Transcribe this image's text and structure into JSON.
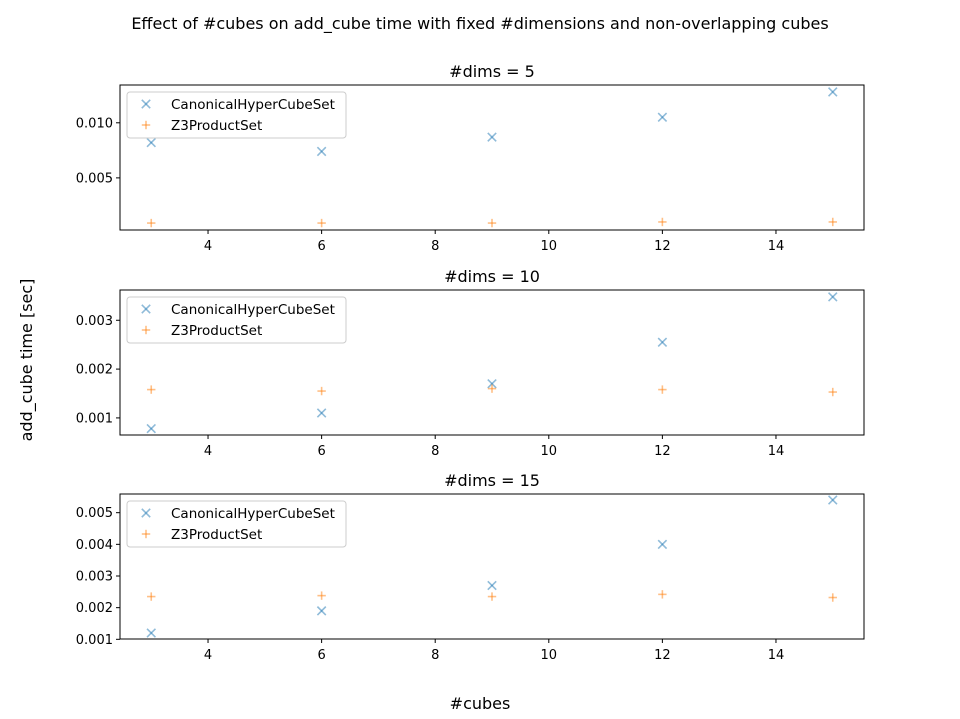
{
  "figure": {
    "suptitle": "Effect of #cubes on add_cube time with fixed #dimensions and non-overlapping cubes",
    "xlabel": "#cubes",
    "ylabel": "add_cube time [sec]"
  },
  "colors": {
    "CanonicalHyperCubeSet": "#1f77b4",
    "Z3ProductSet": "#ff7f0e"
  },
  "chart_data": [
    {
      "type": "scatter",
      "title": "#dims = 5",
      "xlim": [
        2.45,
        15.55
      ],
      "ylim": [
        0.00027,
        0.01343
      ],
      "xticks": [
        4,
        6,
        8,
        10,
        12,
        14
      ],
      "yticks": [
        0.005,
        0.01
      ],
      "ytick_labels": [
        "0.005",
        "0.010"
      ],
      "legend_position": "upper-left",
      "series": [
        {
          "name": "CanonicalHyperCubeSet",
          "marker": "x",
          "x": [
            3,
            6,
            9,
            12,
            15
          ],
          "y": [
            0.0082,
            0.0074,
            0.0087,
            0.0105,
            0.0128
          ]
        },
        {
          "name": "Z3ProductSet",
          "marker": "+",
          "x": [
            3,
            6,
            9,
            12,
            15
          ],
          "y": [
            0.0009,
            0.0009,
            0.0009,
            0.001,
            0.001
          ]
        }
      ]
    },
    {
      "type": "scatter",
      "title": "#dims = 10",
      "xlim": [
        2.45,
        15.55
      ],
      "ylim": [
        0.00065,
        0.00362
      ],
      "xticks": [
        4,
        6,
        8,
        10,
        12,
        14
      ],
      "yticks": [
        0.001,
        0.002,
        0.003
      ],
      "ytick_labels": [
        "0.001",
        "0.002",
        "0.003"
      ],
      "legend_position": "upper-left",
      "series": [
        {
          "name": "CanonicalHyperCubeSet",
          "marker": "x",
          "x": [
            3,
            6,
            9,
            12,
            15
          ],
          "y": [
            0.00078,
            0.0011,
            0.0017,
            0.00255,
            0.00348
          ]
        },
        {
          "name": "Z3ProductSet",
          "marker": "+",
          "x": [
            3,
            6,
            9,
            12,
            15
          ],
          "y": [
            0.00158,
            0.00155,
            0.0016,
            0.00158,
            0.00153
          ]
        }
      ]
    },
    {
      "type": "scatter",
      "title": "#dims = 15",
      "xlim": [
        2.45,
        15.55
      ],
      "ylim": [
        0.00101,
        0.00559
      ],
      "xticks": [
        4,
        6,
        8,
        10,
        12,
        14
      ],
      "yticks": [
        0.001,
        0.002,
        0.003,
        0.004,
        0.005
      ],
      "ytick_labels": [
        "0.001",
        "0.002",
        "0.003",
        "0.004",
        "0.005"
      ],
      "legend_position": "upper-left",
      "series": [
        {
          "name": "CanonicalHyperCubeSet",
          "marker": "x",
          "x": [
            3,
            6,
            9,
            12,
            15
          ],
          "y": [
            0.0012,
            0.0019,
            0.0027,
            0.004,
            0.0054
          ]
        },
        {
          "name": "Z3ProductSet",
          "marker": "+",
          "x": [
            3,
            6,
            9,
            12,
            15
          ],
          "y": [
            0.00235,
            0.00238,
            0.00235,
            0.00242,
            0.00232
          ]
        }
      ]
    }
  ]
}
